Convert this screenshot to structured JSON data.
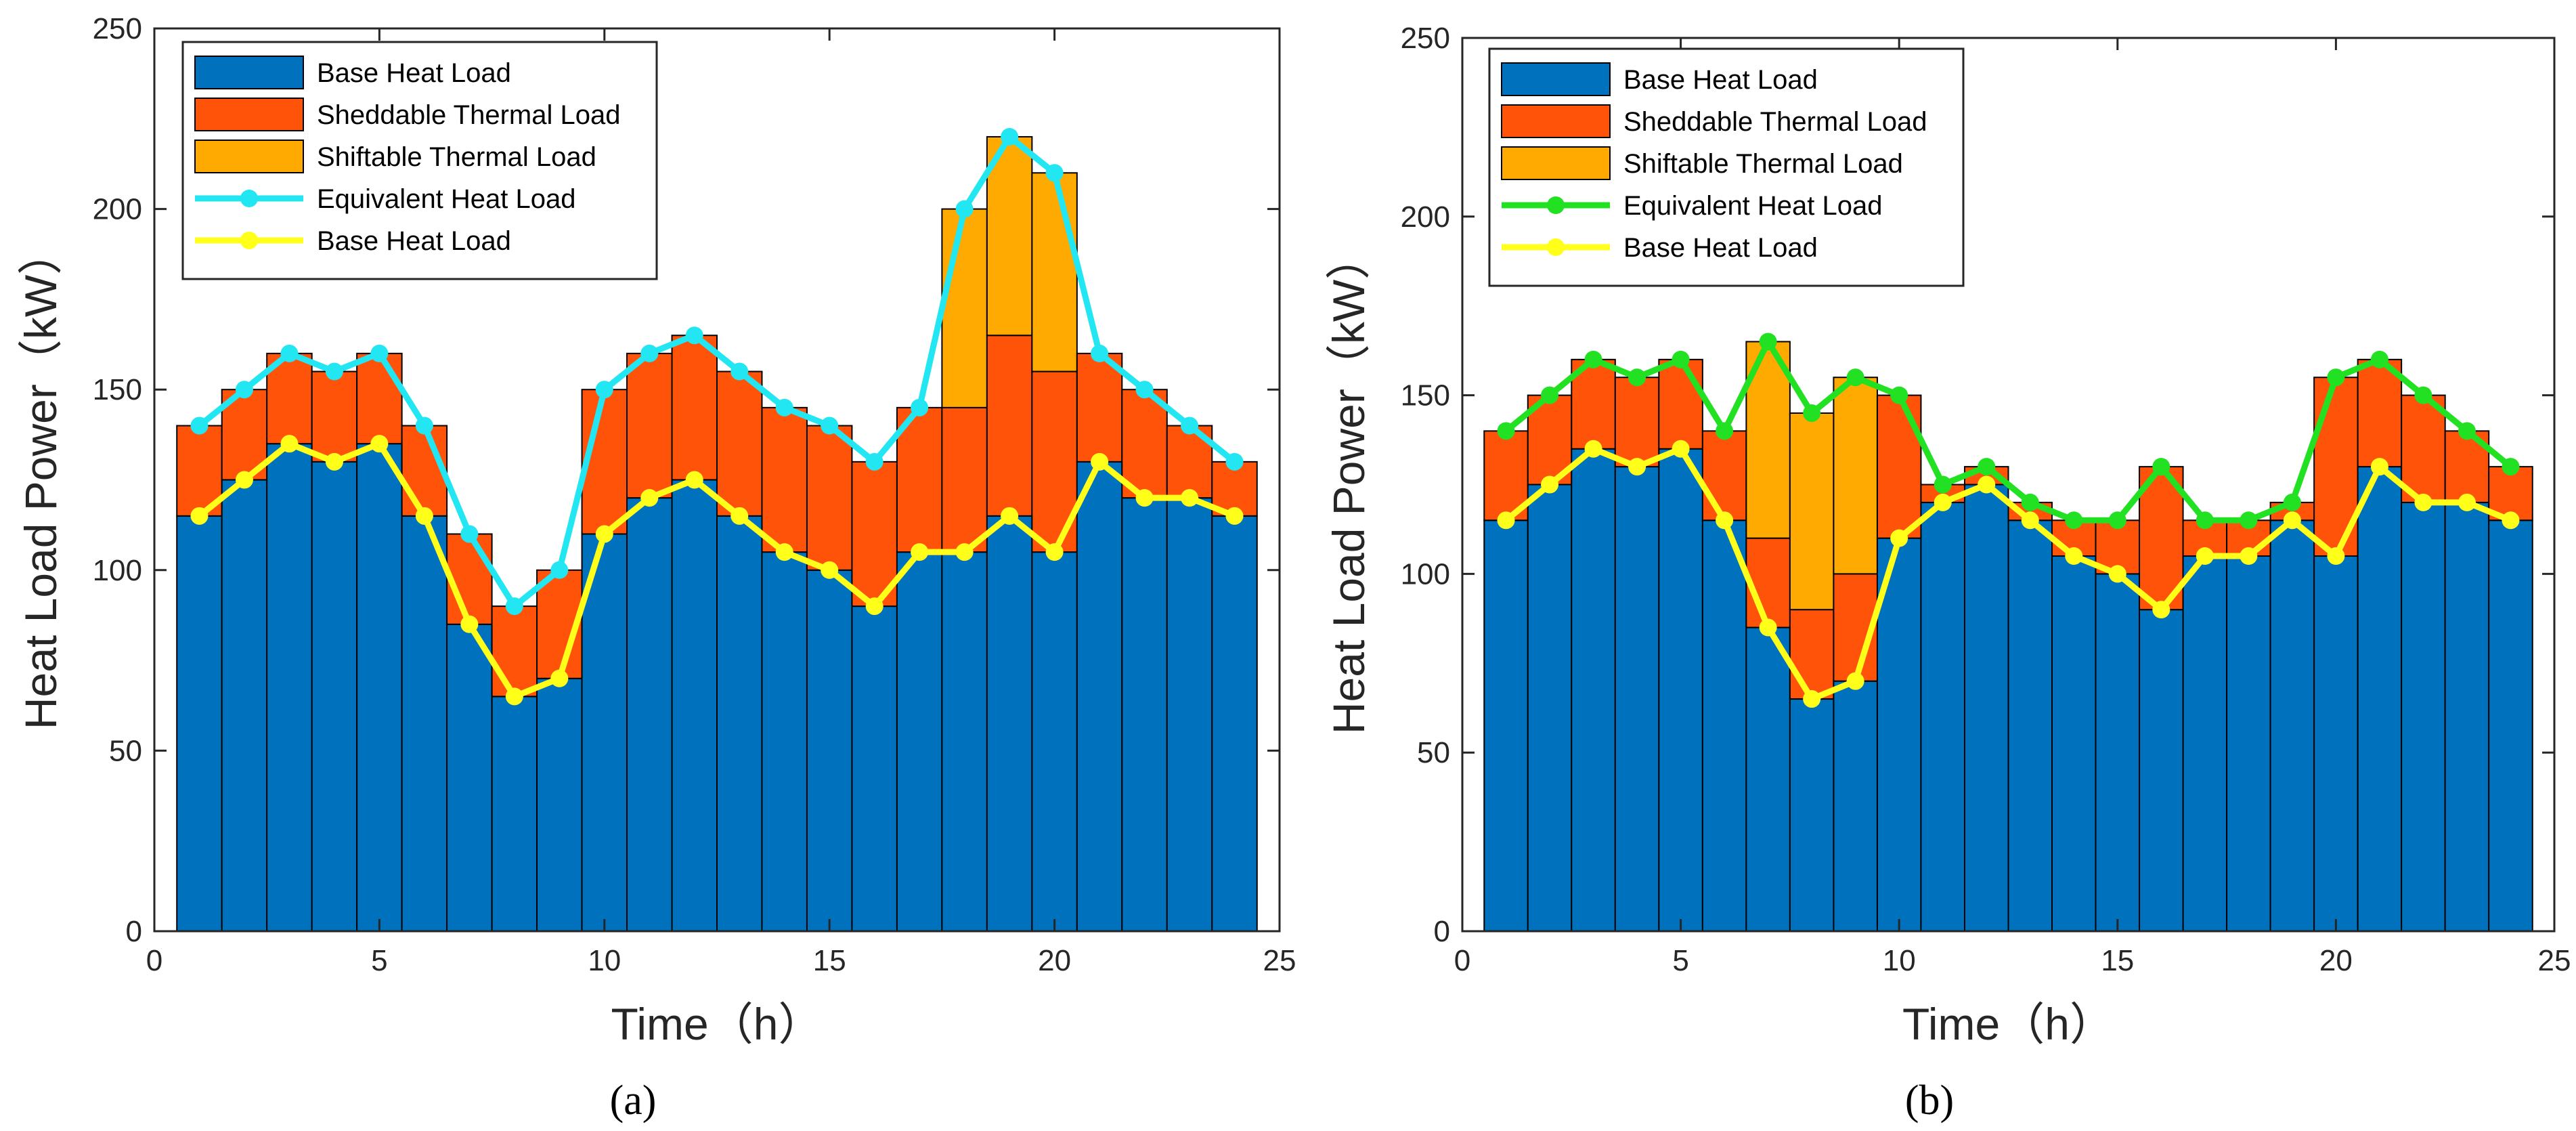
{
  "figure": {
    "colors": {
      "base": "#0072BD",
      "sheddable": "#FF5309",
      "shiftable": "#FFAA00",
      "equivalent_a": "#22E6F2",
      "equivalent_b": "#22E022",
      "base_line": "#FFFF1A",
      "axis": "#262626"
    }
  },
  "chart_data": [
    {
      "type": "bar",
      "panel_label": "(a)",
      "xlabel": "Time（h）",
      "ylabel": "Heat Load Power（kW）",
      "xlim": [
        0,
        25
      ],
      "ylim": [
        0,
        250
      ],
      "xticks": [
        0,
        5,
        10,
        15,
        20,
        25
      ],
      "yticks": [
        0,
        50,
        100,
        150,
        200,
        250
      ],
      "legend": {
        "position": "top-left",
        "entries": [
          {
            "label": "Base Heat Load",
            "kind": "patch",
            "color": "#0072BD"
          },
          {
            "label": "Sheddable Thermal Load",
            "kind": "patch",
            "color": "#FF5309"
          },
          {
            "label": "Shiftable Thermal Load",
            "kind": "patch",
            "color": "#FFAA00"
          },
          {
            "label": "Equivalent Heat Load",
            "kind": "line",
            "color": "#22E6F2"
          },
          {
            "label": "Base Heat Load",
            "kind": "line",
            "color": "#FFFF1A"
          }
        ]
      },
      "x": [
        1,
        2,
        3,
        4,
        5,
        6,
        7,
        8,
        9,
        10,
        11,
        12,
        13,
        14,
        15,
        16,
        17,
        18,
        19,
        20,
        21,
        22,
        23,
        24
      ],
      "stacked_series": [
        {
          "name": "Base Heat Load",
          "values": [
            115,
            125,
            135,
            130,
            135,
            115,
            85,
            65,
            70,
            110,
            120,
            125,
            115,
            105,
            100,
            90,
            105,
            105,
            115,
            105,
            130,
            120,
            120,
            115
          ]
        },
        {
          "name": "Sheddable Thermal Load",
          "values": [
            25,
            25,
            25,
            25,
            25,
            25,
            25,
            25,
            30,
            40,
            40,
            40,
            40,
            40,
            40,
            40,
            40,
            40,
            50,
            50,
            30,
            30,
            20,
            15
          ]
        },
        {
          "name": "Shiftable Thermal Load",
          "values": [
            0,
            0,
            0,
            0,
            0,
            0,
            0,
            0,
            0,
            0,
            0,
            0,
            0,
            0,
            0,
            0,
            0,
            55,
            55,
            55,
            0,
            0,
            0,
            0
          ]
        }
      ],
      "line_series": [
        {
          "name": "Equivalent Heat Load",
          "values": [
            140,
            150,
            160,
            155,
            160,
            140,
            110,
            90,
            100,
            150,
            160,
            165,
            155,
            145,
            140,
            130,
            145,
            200,
            220,
            210,
            160,
            150,
            140,
            130
          ]
        },
        {
          "name": "Base Heat Load",
          "values": [
            115,
            125,
            135,
            130,
            135,
            115,
            85,
            65,
            70,
            110,
            120,
            125,
            115,
            105,
            100,
            90,
            105,
            105,
            115,
            105,
            130,
            120,
            120,
            115
          ]
        }
      ]
    },
    {
      "type": "bar",
      "panel_label": "(b)",
      "xlabel": "Time（h）",
      "ylabel": "Heat Load Power（kW）",
      "xlim": [
        0,
        25
      ],
      "ylim": [
        0,
        250
      ],
      "xticks": [
        0,
        5,
        10,
        15,
        20,
        25
      ],
      "yticks": [
        0,
        50,
        100,
        150,
        200,
        250
      ],
      "legend": {
        "position": "top-left",
        "entries": [
          {
            "label": "Base Heat Load",
            "kind": "patch",
            "color": "#0072BD"
          },
          {
            "label": "Sheddable Thermal Load",
            "kind": "patch",
            "color": "#FF5309"
          },
          {
            "label": "Shiftable Thermal Load",
            "kind": "patch",
            "color": "#FFAA00"
          },
          {
            "label": "Equivalent Heat Load",
            "kind": "line",
            "color": "#22E022"
          },
          {
            "label": "Base Heat Load",
            "kind": "line",
            "color": "#FFFF1A"
          }
        ]
      },
      "x": [
        1,
        2,
        3,
        4,
        5,
        6,
        7,
        8,
        9,
        10,
        11,
        12,
        13,
        14,
        15,
        16,
        17,
        18,
        19,
        20,
        21,
        22,
        23,
        24
      ],
      "stacked_series": [
        {
          "name": "Base Heat Load",
          "values": [
            115,
            125,
            135,
            130,
            135,
            115,
            85,
            65,
            70,
            110,
            120,
            125,
            115,
            105,
            100,
            90,
            105,
            105,
            115,
            105,
            130,
            120,
            120,
            115
          ]
        },
        {
          "name": "Sheddable Thermal Load",
          "values": [
            25,
            25,
            25,
            25,
            25,
            25,
            25,
            25,
            30,
            40,
            5,
            5,
            5,
            10,
            15,
            40,
            10,
            10,
            5,
            50,
            30,
            30,
            20,
            15
          ]
        },
        {
          "name": "Shiftable Thermal Load",
          "values": [
            0,
            0,
            0,
            0,
            0,
            0,
            55,
            55,
            55,
            0,
            0,
            0,
            0,
            0,
            0,
            0,
            0,
            0,
            0,
            0,
            0,
            0,
            0,
            0
          ]
        }
      ],
      "line_series": [
        {
          "name": "Equivalent Heat Load",
          "values": [
            140,
            150,
            160,
            155,
            160,
            140,
            165,
            145,
            155,
            150,
            125,
            130,
            120,
            115,
            115,
            130,
            115,
            115,
            120,
            155,
            160,
            150,
            140,
            130
          ]
        },
        {
          "name": "Base Heat Load",
          "values": [
            115,
            125,
            135,
            130,
            135,
            115,
            85,
            65,
            70,
            110,
            120,
            125,
            115,
            105,
            100,
            90,
            105,
            105,
            115,
            105,
            130,
            120,
            120,
            115
          ]
        }
      ]
    }
  ]
}
